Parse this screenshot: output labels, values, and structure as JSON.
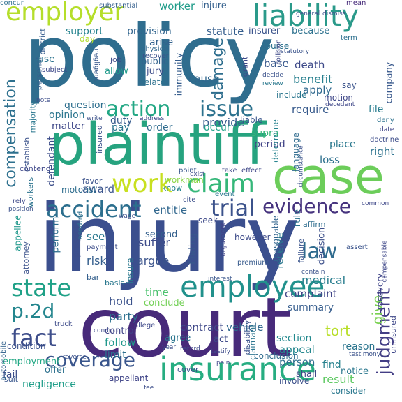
{
  "words": [
    {
      "text": "injury",
      "color": "#3b4f8e"
    },
    {
      "text": "policy",
      "color": "#2f6d8e"
    },
    {
      "text": "court",
      "color": "#472a7a"
    },
    {
      "text": "plaintiff",
      "color": "#26a37f"
    },
    {
      "text": "case",
      "color": "#6ccd5a"
    },
    {
      "text": "insurance",
      "color": "#27ad81"
    },
    {
      "text": "employee",
      "color": "#21918c"
    },
    {
      "text": "liability",
      "color": "#2a9a8a"
    },
    {
      "text": "employer",
      "color": "#b5de2b"
    },
    {
      "text": "accident",
      "color": "#2c6f8e"
    },
    {
      "text": "trial",
      "color": "#3b528b"
    },
    {
      "text": "evidence",
      "color": "#46337e"
    },
    {
      "text": "claim",
      "color": "#35b779"
    },
    {
      "text": "work",
      "color": "#c8e020"
    },
    {
      "text": "action",
      "color": "#22a784"
    },
    {
      "text": "issue",
      "color": "#2c728e"
    },
    {
      "text": "state",
      "color": "#1fa187"
    },
    {
      "text": "p.2d",
      "color": "#24868e"
    },
    {
      "text": "fact",
      "color": "#3d4d8a"
    },
    {
      "text": "coverage",
      "color": "#39558c"
    },
    {
      "text": "law",
      "color": "#2f6b8e"
    },
    {
      "text": "compensation",
      "color": "#2d708e"
    },
    {
      "text": "damage",
      "color": "#2e6e8e"
    },
    {
      "text": "judgment",
      "color": "#433e85"
    },
    {
      "text": "contract",
      "color": "#3f4889"
    },
    {
      "text": "vehicle",
      "color": "#31688e"
    },
    {
      "text": "complaint",
      "color": "#404588"
    },
    {
      "text": "medical",
      "color": "#287d8e"
    },
    {
      "text": "receive",
      "color": "#2a788e"
    },
    {
      "text": "benefit",
      "color": "#277f8e"
    },
    {
      "text": "death",
      "color": "#3e4a89"
    },
    {
      "text": "apply",
      "color": "#30698e"
    },
    {
      "text": "require",
      "color": "#375a8c"
    },
    {
      "text": "provide",
      "color": "#365c8d"
    },
    {
      "text": "statute",
      "color": "#355e8d"
    },
    {
      "text": "insurer",
      "color": "#3a538b"
    },
    {
      "text": "because",
      "color": "#2c718e"
    },
    {
      "text": "provision",
      "color": "#32658e"
    },
    {
      "text": "support",
      "color": "#25838e"
    },
    {
      "text": "arise",
      "color": "#33628d"
    },
    {
      "text": "worker",
      "color": "#1e9c89"
    },
    {
      "text": "injure",
      "color": "#34608d"
    },
    {
      "text": "cause",
      "color": "#31678e"
    },
    {
      "text": "base",
      "color": "#38588c"
    },
    {
      "text": "decision",
      "color": "#3c4f8a"
    },
    {
      "text": "rule",
      "color": "#2b748e"
    },
    {
      "text": "summary",
      "color": "#365d8d"
    },
    {
      "text": "give",
      "color": "#7ad151"
    },
    {
      "text": "tort",
      "color": "#b8de29"
    },
    {
      "text": "reason",
      "color": "#2b758e"
    },
    {
      "text": "notice",
      "color": "#2a778e"
    },
    {
      "text": "find",
      "color": "#26818e"
    },
    {
      "text": "result",
      "color": "#5ec962"
    },
    {
      "text": "appeal",
      "color": "#24878e"
    },
    {
      "text": "person",
      "color": "#2e6f8e"
    },
    {
      "text": "section",
      "color": "#23898e"
    },
    {
      "text": "shall",
      "color": "#3f4788"
    },
    {
      "text": "follow",
      "color": "#1f988b"
    },
    {
      "text": "limit",
      "color": "#2d718e"
    },
    {
      "text": "control",
      "color": "#404387"
    },
    {
      "text": "agree",
      "color": "#2b758e"
    },
    {
      "text": "act",
      "color": "#3e4a89"
    },
    {
      "text": "employment",
      "color": "#22a884"
    },
    {
      "text": "condition",
      "color": "#3b518b"
    },
    {
      "text": "negligence",
      "color": "#1f9e89"
    },
    {
      "text": "fail",
      "color": "#3d4e8a"
    },
    {
      "text": "party",
      "color": "#2d708e"
    },
    {
      "text": "hold",
      "color": "#3b528b"
    },
    {
      "text": "time",
      "color": "#4ac16d"
    },
    {
      "text": "conclude",
      "color": "#73d056"
    },
    {
      "text": "risk",
      "color": "#355f8d"
    },
    {
      "text": "argue",
      "color": "#3a538b"
    },
    {
      "text": "suffer",
      "color": "#3e4c8a"
    },
    {
      "text": "second",
      "color": "#34608d"
    },
    {
      "text": "see",
      "color": "#2a788e"
    },
    {
      "text": "award",
      "color": "#3a548c"
    },
    {
      "text": "defendant",
      "color": "#3d4e8a"
    },
    {
      "text": "matter",
      "color": "#3f4889"
    },
    {
      "text": "opinion",
      "color": "#2b758e"
    },
    {
      "text": "question",
      "color": "#2e6f8e"
    },
    {
      "text": "duty",
      "color": "#375b8d"
    },
    {
      "text": "order",
      "color": "#2f6c8e"
    },
    {
      "text": "pay",
      "color": "#2b748e"
    },
    {
      "text": "occur",
      "color": "#1fa188"
    },
    {
      "text": "entitle",
      "color": "#31678e"
    },
    {
      "text": "motorist",
      "color": "#2e6d8e"
    },
    {
      "text": "finding",
      "color": "#38588c"
    },
    {
      "text": "insure",
      "color": "#2a788e"
    },
    {
      "text": "present",
      "color": "#3d4e8a"
    },
    {
      "text": "perform",
      "color": "#2e6e8e"
    },
    {
      "text": "appellee",
      "color": "#1f978b"
    },
    {
      "text": "attorney",
      "color": "#3b518b"
    },
    {
      "text": "supra",
      "color": "#35b779"
    },
    {
      "text": "period",
      "color": "#414487"
    },
    {
      "text": "determine",
      "color": "#26828e"
    },
    {
      "text": "loss",
      "color": "#2d708e"
    },
    {
      "text": "place",
      "color": "#2a788e"
    },
    {
      "text": "right",
      "color": "#2c728e"
    },
    {
      "text": "file",
      "color": "#287c8e"
    },
    {
      "text": "language",
      "color": "#2f6b8e"
    },
    {
      "text": "however",
      "color": "#3e4c8a"
    },
    {
      "text": "reasonable",
      "color": "#32648e"
    },
    {
      "text": "recovery",
      "color": "#404588"
    },
    {
      "text": "uninsured",
      "color": "#3f4889"
    },
    {
      "text": "claimant",
      "color": "#2b758e"
    },
    {
      "text": "conclusion",
      "color": "#2f6c8e"
    },
    {
      "text": "offer",
      "color": "#2d718e"
    },
    {
      "text": "establish",
      "color": "#3b528b"
    },
    {
      "text": "majority",
      "color": "#2a778e"
    },
    {
      "text": "personal",
      "color": "#355e8d"
    },
    {
      "text": "district",
      "color": "#365c8d"
    },
    {
      "text": "company",
      "color": "#38588c"
    },
    {
      "text": "motion",
      "color": "#3f4788"
    },
    {
      "text": "immunity",
      "color": "#365d8d"
    },
    {
      "text": "public",
      "color": "#33638d"
    },
    {
      "text": "jury",
      "color": "#3d4d8a"
    },
    {
      "text": "relate",
      "color": "#2d718e"
    },
    {
      "text": "allow",
      "color": "#1f9a8a"
    },
    {
      "text": "job",
      "color": "#3e4989"
    },
    {
      "text": "day",
      "color": "#b2dd2d"
    },
    {
      "text": "course",
      "color": "#2c728e"
    },
    {
      "text": "include",
      "color": "#2a768e"
    },
    {
      "text": "liable",
      "color": "#39568c"
    },
    {
      "text": "workman",
      "color": "#8bd646"
    },
    {
      "text": "favor",
      "color": "#3b528b"
    },
    {
      "text": "know",
      "color": "#25848e"
    },
    {
      "text": "affirm",
      "color": "#2e6d8e"
    },
    {
      "text": "seek",
      "color": "#3e4a89"
    },
    {
      "text": "failure",
      "color": "#3a548c"
    },
    {
      "text": "contend",
      "color": "#3f4889"
    },
    {
      "text": "appellant",
      "color": "#404588"
    },
    {
      "text": "consider",
      "color": "#2a788e"
    },
    {
      "text": "involve",
      "color": "#3c4f8a"
    },
    {
      "text": "cover",
      "color": "#3b528b"
    },
    {
      "text": "suit",
      "color": "#39568c"
    },
    {
      "text": "say",
      "color": "#3a538b"
    },
    {
      "text": "grant",
      "color": "#3e4a89"
    },
    {
      "text": "term",
      "color": "#2d708e"
    },
    {
      "text": "mean",
      "color": "#472c7a"
    },
    {
      "text": "concur",
      "color": "#2e6f8e"
    },
    {
      "text": "substantial",
      "color": "#355f8d"
    },
    {
      "text": "physical",
      "color": "#31688e"
    },
    {
      "text": "recover",
      "color": "#3b528b"
    },
    {
      "text": "negligent",
      "color": "#38598c"
    },
    {
      "text": "use",
      "color": "#2c738e"
    },
    {
      "text": "subject",
      "color": "#3e4989"
    },
    {
      "text": "insured",
      "color": "#3b518b"
    },
    {
      "text": "workers",
      "color": "#2c738e"
    },
    {
      "text": "automobile",
      "color": "#33628d"
    },
    {
      "text": "disability",
      "color": "#3b528b"
    },
    {
      "text": "argument",
      "color": "#404387"
    },
    {
      "text": "basis",
      "color": "#2a788e"
    },
    {
      "text": "truck",
      "color": "#3e4c8a"
    },
    {
      "text": "bar",
      "color": "#34608d"
    },
    {
      "text": "payment",
      "color": "#3d4e8a"
    },
    {
      "text": "purpose",
      "color": "#2d718e"
    },
    {
      "text": "position",
      "color": "#3b528b"
    },
    {
      "text": "rely",
      "color": "#3e4989"
    },
    {
      "text": "premium",
      "color": "#375a8c"
    },
    {
      "text": "interest",
      "color": "#39568c"
    },
    {
      "text": "event",
      "color": "#2a788e"
    },
    {
      "text": "cite",
      "color": "#3c4f8a"
    },
    {
      "text": "exist",
      "color": "#3d4e8a"
    },
    {
      "text": "point",
      "color": "#38588c"
    },
    {
      "text": "take",
      "color": "#3e4989"
    },
    {
      "text": "effect",
      "color": "#3f4788"
    },
    {
      "text": "circumstance",
      "color": "#3b528b"
    },
    {
      "text": "date",
      "color": "#404588"
    },
    {
      "text": "deny",
      "color": "#2c728e"
    },
    {
      "text": "doctrine",
      "color": "#3d4d8a"
    },
    {
      "text": "common",
      "color": "#3f4889"
    },
    {
      "text": "assert",
      "color": "#3a538b"
    },
    {
      "text": "contain",
      "color": "#3b528b"
    },
    {
      "text": "testify",
      "color": "#3e4c8a"
    },
    {
      "text": "testimony",
      "color": "#3b528b"
    },
    {
      "text": "year",
      "color": "#3c4f8a"
    },
    {
      "text": "record",
      "color": "#3e4989"
    },
    {
      "text": "pain",
      "color": "#3f4788"
    },
    {
      "text": "fee",
      "color": "#3d4e8a"
    },
    {
      "text": "reverse",
      "color": "#3b528b"
    },
    {
      "text": "conduct",
      "color": "#3e4a89"
    },
    {
      "text": "general",
      "color": "#3b528b"
    },
    {
      "text": "dismiss",
      "color": "#3c4f8a"
    },
    {
      "text": "statutory",
      "color": "#3a538b"
    },
    {
      "text": "decide",
      "color": "#3b528b"
    },
    {
      "text": "review",
      "color": "#2a788e"
    },
    {
      "text": "decedent",
      "color": "#3f4788"
    },
    {
      "text": "address",
      "color": "#3e4989"
    },
    {
      "text": "note",
      "color": "#3d4e8a"
    },
    {
      "text": "wage",
      "color": "#3c4f8a"
    },
    {
      "text": "collision",
      "color": "#3e4a89"
    },
    {
      "text": "compensable",
      "color": "#3f4889"
    },
    {
      "text": "write",
      "color": "#3b528b"
    },
    {
      "text": "allege",
      "color": "#3e4989"
    }
  ]
}
